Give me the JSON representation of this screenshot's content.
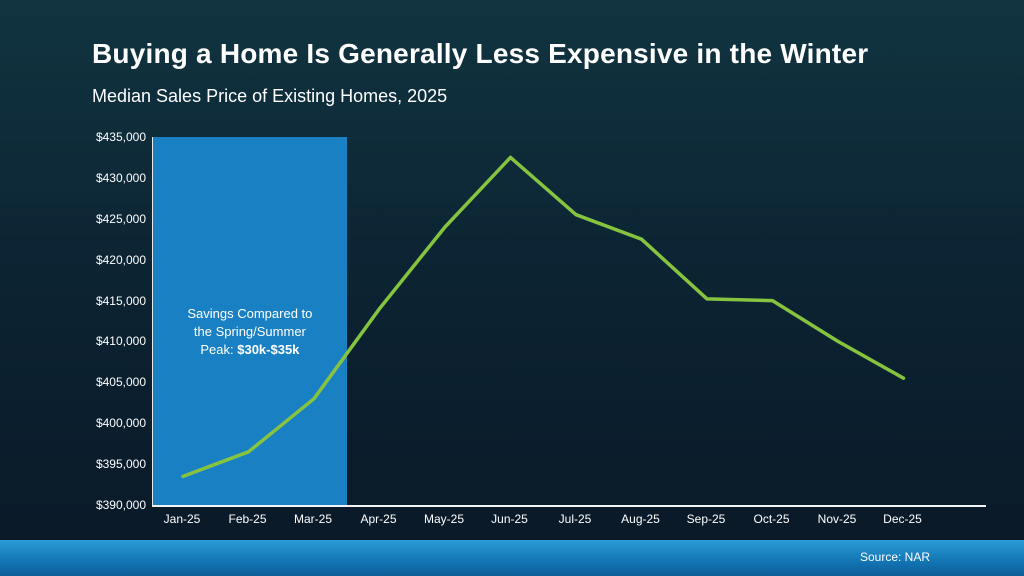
{
  "title": "Buying a Home Is Generally Less Expensive in the Winter",
  "subtitle": "Median Sales Price of Existing Homes, 2025",
  "footer": {
    "source": "Source: NAR"
  },
  "chart_data": {
    "type": "line",
    "title": "Median Sales Price of Existing Homes, 2025",
    "categories": [
      "Jan-25",
      "Feb-25",
      "Mar-25",
      "Apr-25",
      "May-25",
      "Jun-25",
      "Jul-25",
      "Aug-25",
      "Sep-25",
      "Oct-25",
      "Nov-25",
      "Dec-25"
    ],
    "values": [
      393500,
      396500,
      403000,
      414000,
      424000,
      432500,
      425500,
      422500,
      415200,
      415000,
      410000,
      405500
    ],
    "ylim": [
      390000,
      435000
    ],
    "yticks": [
      390000,
      395000,
      400000,
      405000,
      410000,
      415000,
      420000,
      425000,
      430000,
      435000
    ],
    "ytick_labels": [
      "$390,000",
      "$395,000",
      "$400,000",
      "$405,000",
      "$410,000",
      "$415,000",
      "$420,000",
      "$425,000",
      "$430,000",
      "$435,000"
    ],
    "grid": false,
    "legend": false,
    "line_color": "#86c440",
    "highlight": {
      "start_index": 0,
      "end_index": 2,
      "color": "#1a80c4",
      "annotation_text": "Savings Compared to the Spring/Summer Peak:",
      "annotation_bold": "$30k-$35k"
    }
  }
}
